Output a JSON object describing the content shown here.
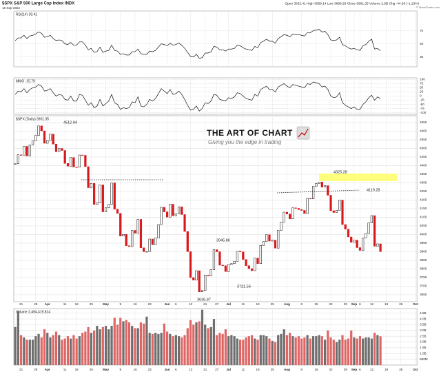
{
  "header": {
    "symbol": "$SPX S&P 500 Large Cap Index INDX",
    "date": "15-Sep-2022",
    "quote": "Open 3932.41 High 3959.14 Low 3888.28 Close 3901.35 Volume 2.5B Chg -44.66 (-1.13%)",
    "copyright": "© StockCharts.com"
  },
  "logo": {
    "title": "THE ART OF CHART",
    "tagline": "Giving you the edge in trading"
  },
  "chart_data": [
    {
      "type": "line",
      "title": "RSI(14) 39.41",
      "color": "#111111",
      "values": [
        55,
        59,
        59,
        63,
        58,
        62,
        63,
        65,
        68,
        66,
        60,
        61,
        63,
        58,
        55,
        56,
        55,
        50,
        49,
        52,
        48,
        48,
        53,
        53,
        48,
        41,
        43,
        37,
        38,
        45,
        37,
        39,
        40,
        48,
        40,
        39,
        34,
        35,
        33,
        33,
        38,
        38,
        42,
        35,
        34,
        34,
        39,
        38,
        40,
        45,
        50,
        49,
        47,
        51,
        48,
        49,
        51,
        48,
        43,
        37,
        31,
        30,
        34,
        28,
        29,
        36,
        36,
        38,
        46,
        45,
        41,
        41,
        39,
        42,
        42,
        43,
        48,
        47,
        44,
        42,
        41,
        40,
        46,
        44,
        52,
        54,
        57,
        54,
        54,
        51,
        58,
        61,
        64,
        63,
        61,
        65,
        64,
        64,
        63,
        62,
        67,
        67,
        70,
        71,
        72,
        68,
        69,
        64,
        56,
        55,
        56,
        60,
        49,
        47,
        44,
        42,
        43,
        41,
        40,
        47,
        49,
        54,
        57,
        42,
        43,
        39.41
      ],
      "ylim": [
        15,
        100
      ],
      "yticks": [
        30,
        50,
        70
      ],
      "grid": true
    },
    {
      "type": "line",
      "title": "MMO -15.79",
      "color": "#111111",
      "values": [
        10,
        30,
        25,
        45,
        20,
        40,
        50,
        55,
        70,
        60,
        30,
        35,
        45,
        20,
        0,
        10,
        5,
        -20,
        -25,
        0,
        -30,
        -30,
        10,
        5,
        -25,
        -55,
        -40,
        -70,
        -60,
        -20,
        -60,
        -45,
        -30,
        10,
        -40,
        -50,
        -80,
        -70,
        -75,
        -70,
        -35,
        -40,
        -5,
        -60,
        -65,
        -50,
        -20,
        -30,
        -15,
        15,
        45,
        30,
        15,
        40,
        10,
        15,
        30,
        10,
        -20,
        -55,
        -85,
        -80,
        -60,
        -90,
        -75,
        -40,
        -45,
        -30,
        10,
        5,
        -20,
        -25,
        -30,
        -10,
        -15,
        -5,
        20,
        15,
        0,
        -15,
        -20,
        -25,
        10,
        0,
        40,
        50,
        60,
        40,
        40,
        25,
        55,
        65,
        75,
        60,
        50,
        70,
        65,
        60,
        55,
        50,
        75,
        70,
        85,
        80,
        75,
        55,
        60,
        40,
        0,
        -10,
        -5,
        20,
        -40,
        -55,
        -65,
        -75,
        -65,
        -80,
        -80,
        -50,
        -35,
        -10,
        5,
        -25,
        -5,
        -15.79
      ],
      "ylim": [
        -110,
        110
      ],
      "yticks": [
        100,
        75,
        50,
        25,
        0,
        -25,
        -50,
        -75,
        -100
      ],
      "grid": true
    },
    {
      "type": "candlestick",
      "title": "$SPX (Daily) 3901.35",
      "up_color": "#000000",
      "down_color": "#d7191c",
      "categories": [
        null,
        null,
        "21",
        null,
        null,
        null,
        null,
        "28",
        null,
        null,
        null,
        "Apr",
        null,
        null,
        null,
        null,
        null,
        "11",
        null,
        null,
        null,
        "18",
        null,
        null,
        null,
        null,
        "25",
        null,
        null,
        null,
        null,
        "May",
        null,
        null,
        null,
        null,
        "9",
        null,
        null,
        null,
        null,
        "16",
        null,
        null,
        null,
        null,
        "23",
        null,
        null,
        null,
        null,
        null,
        "Jun",
        null,
        null,
        "6",
        null,
        null,
        null,
        null,
        "13",
        null,
        null,
        null,
        null,
        "21",
        null,
        null,
        null,
        "27",
        null,
        null,
        null,
        "Jul",
        null,
        null,
        null,
        null,
        "11",
        null,
        null,
        null,
        null,
        "18",
        null,
        null,
        null,
        null,
        "25",
        null,
        null,
        null,
        null,
        "Aug",
        null,
        null,
        null,
        null,
        "8",
        null,
        null,
        null,
        null,
        "15",
        null,
        null,
        null,
        null,
        "22",
        null,
        null,
        null,
        null,
        "29",
        null,
        null,
        "Sep",
        null,
        "6",
        null,
        null,
        null,
        "12",
        null,
        null,
        null,
        null,
        "19",
        null,
        null,
        null,
        null,
        "26",
        null,
        null,
        null,
        null,
        "Oct"
      ],
      "values": [
        4411,
        4463,
        4461,
        4512,
        4456,
        4520,
        4543,
        4575,
        4631,
        4602,
        4530,
        4546,
        4583,
        4525,
        4481,
        4500,
        4488,
        4413,
        4397,
        4447,
        4392,
        4391,
        4462,
        4460,
        4394,
        4272,
        4297,
        4175,
        4184,
        4288,
        4132,
        4155,
        4175,
        4300,
        4147,
        4123,
        3991,
        4001,
        3935,
        3930,
        4024,
        4008,
        4088,
        3923,
        3901,
        3901,
        3974,
        3941,
        3979,
        4058,
        4158,
        4132,
        4101,
        4176,
        4109,
        4121,
        4161,
        4116,
        4018,
        3901,
        3750,
        3735,
        3790,
        3667,
        3675,
        3765,
        3760,
        3796,
        3912,
        3900,
        3822,
        3819,
        3785,
        3825,
        3831,
        3845,
        3903,
        3899,
        3855,
        3819,
        3802,
        3790,
        3863,
        3831,
        3937,
        3960,
        3999,
        3962,
        3967,
        3921,
        4024,
        4072,
        4130,
        4119,
        4091,
        4155,
        4152,
        4145,
        4140,
        4122,
        4210,
        4207,
        4280,
        4297,
        4305,
        4275,
        4284,
        4228,
        4138,
        4128,
        4141,
        4200,
        4058,
        4031,
        3986,
        3955,
        3967,
        3924,
        3908,
        3980,
        4006,
        4067,
        4110,
        3932,
        3946,
        3901.35,
        null,
        null,
        null,
        null,
        null,
        null,
        null,
        null,
        null,
        null,
        null,
        null
      ],
      "ylim": [
        3610,
        4690
      ],
      "yticks": [
        3650,
        3700,
        3750,
        3800,
        3850,
        3900,
        3950,
        4000,
        4050,
        4100,
        4150,
        4200,
        4250,
        4300,
        4350,
        4400,
        4450,
        4500,
        4550,
        4600,
        4650
      ],
      "grid": true,
      "annotations": [
        "4512.94",
        "4325.28",
        "4119.28",
        "3945.86",
        "3721.56",
        "3636.87"
      ]
    },
    {
      "type": "bar",
      "title": "Volume 2,494,419,814",
      "up_color": "#6e6e6e",
      "down_color": "#e06666",
      "values": [
        3.3,
        4.7,
        2.6,
        2.4,
        2.2,
        2.2,
        2.2,
        2.5,
        2.7,
        2.4,
        3.1,
        2.8,
        2.4,
        2.6,
        2.9,
        2.6,
        2.2,
        2.3,
        2.5,
        2.3,
        2.6,
        2.3,
        2.5,
        2.8,
        2.9,
        3.3,
        2.8,
        3.0,
        3.4,
        3.1,
        3.3,
        3.4,
        3.1,
        3.4,
        4.1,
        3.5,
        4.1,
        3.8,
        3.9,
        3.7,
        3.4,
        3.2,
        3.2,
        3.7,
        3.6,
        4.2,
        2.8,
        2.7,
        2.8,
        2.7,
        2.8,
        3.6,
        2.9,
        2.7,
        2.5,
        2.6,
        2.5,
        2.4,
        2.6,
        3.2,
        3.9,
        3.5,
        3.7,
        3.8,
        4.8,
        3.5,
        3.2,
        3.3,
        4.0,
        2.6,
        2.8,
        2.7,
        3.1,
        2.5,
        2.6,
        2.5,
        2.3,
        2.2,
        2.2,
        2.4,
        2.5,
        2.6,
        2.3,
        2.2,
        2.6,
        2.6,
        2.5,
        2.3,
        2.1,
        2.0,
        2.6,
        2.7,
        3.1,
        2.6,
        2.8,
        2.5,
        2.4,
        2.5,
        2.3,
        2.4,
        2.6,
        2.3,
        2.5,
        2.5,
        2.6,
        2.5,
        2.2,
        3.0,
        2.4,
        2.2,
        2.0,
        2.2,
        2.6,
        2.2,
        2.3,
        3.0,
        2.4,
        2.3,
        2.5,
        2.3,
        2.4,
        2.4,
        2.3,
        2.8,
        2.6,
        2.49,
        null,
        null,
        null,
        null,
        null,
        null,
        null,
        null,
        null,
        null,
        null,
        null
      ],
      "ylim": [
        0,
        4.9
      ],
      "yticks": [
        {
          "value": 0.5,
          "label": "500M"
        },
        {
          "value": 1,
          "label": "1.0B"
        },
        {
          "value": 1.5,
          "label": "1.5B"
        },
        {
          "value": 2,
          "label": "2.0B"
        },
        {
          "value": 2.5,
          "label": "2.5B"
        },
        {
          "value": 3,
          "label": "3.0B"
        },
        {
          "value": 3.5,
          "label": "3.5B"
        },
        {
          "value": 4,
          "label": "4.0B"
        },
        {
          "value": 4.5,
          "label": "4.5B"
        }
      ],
      "grid": true
    }
  ]
}
